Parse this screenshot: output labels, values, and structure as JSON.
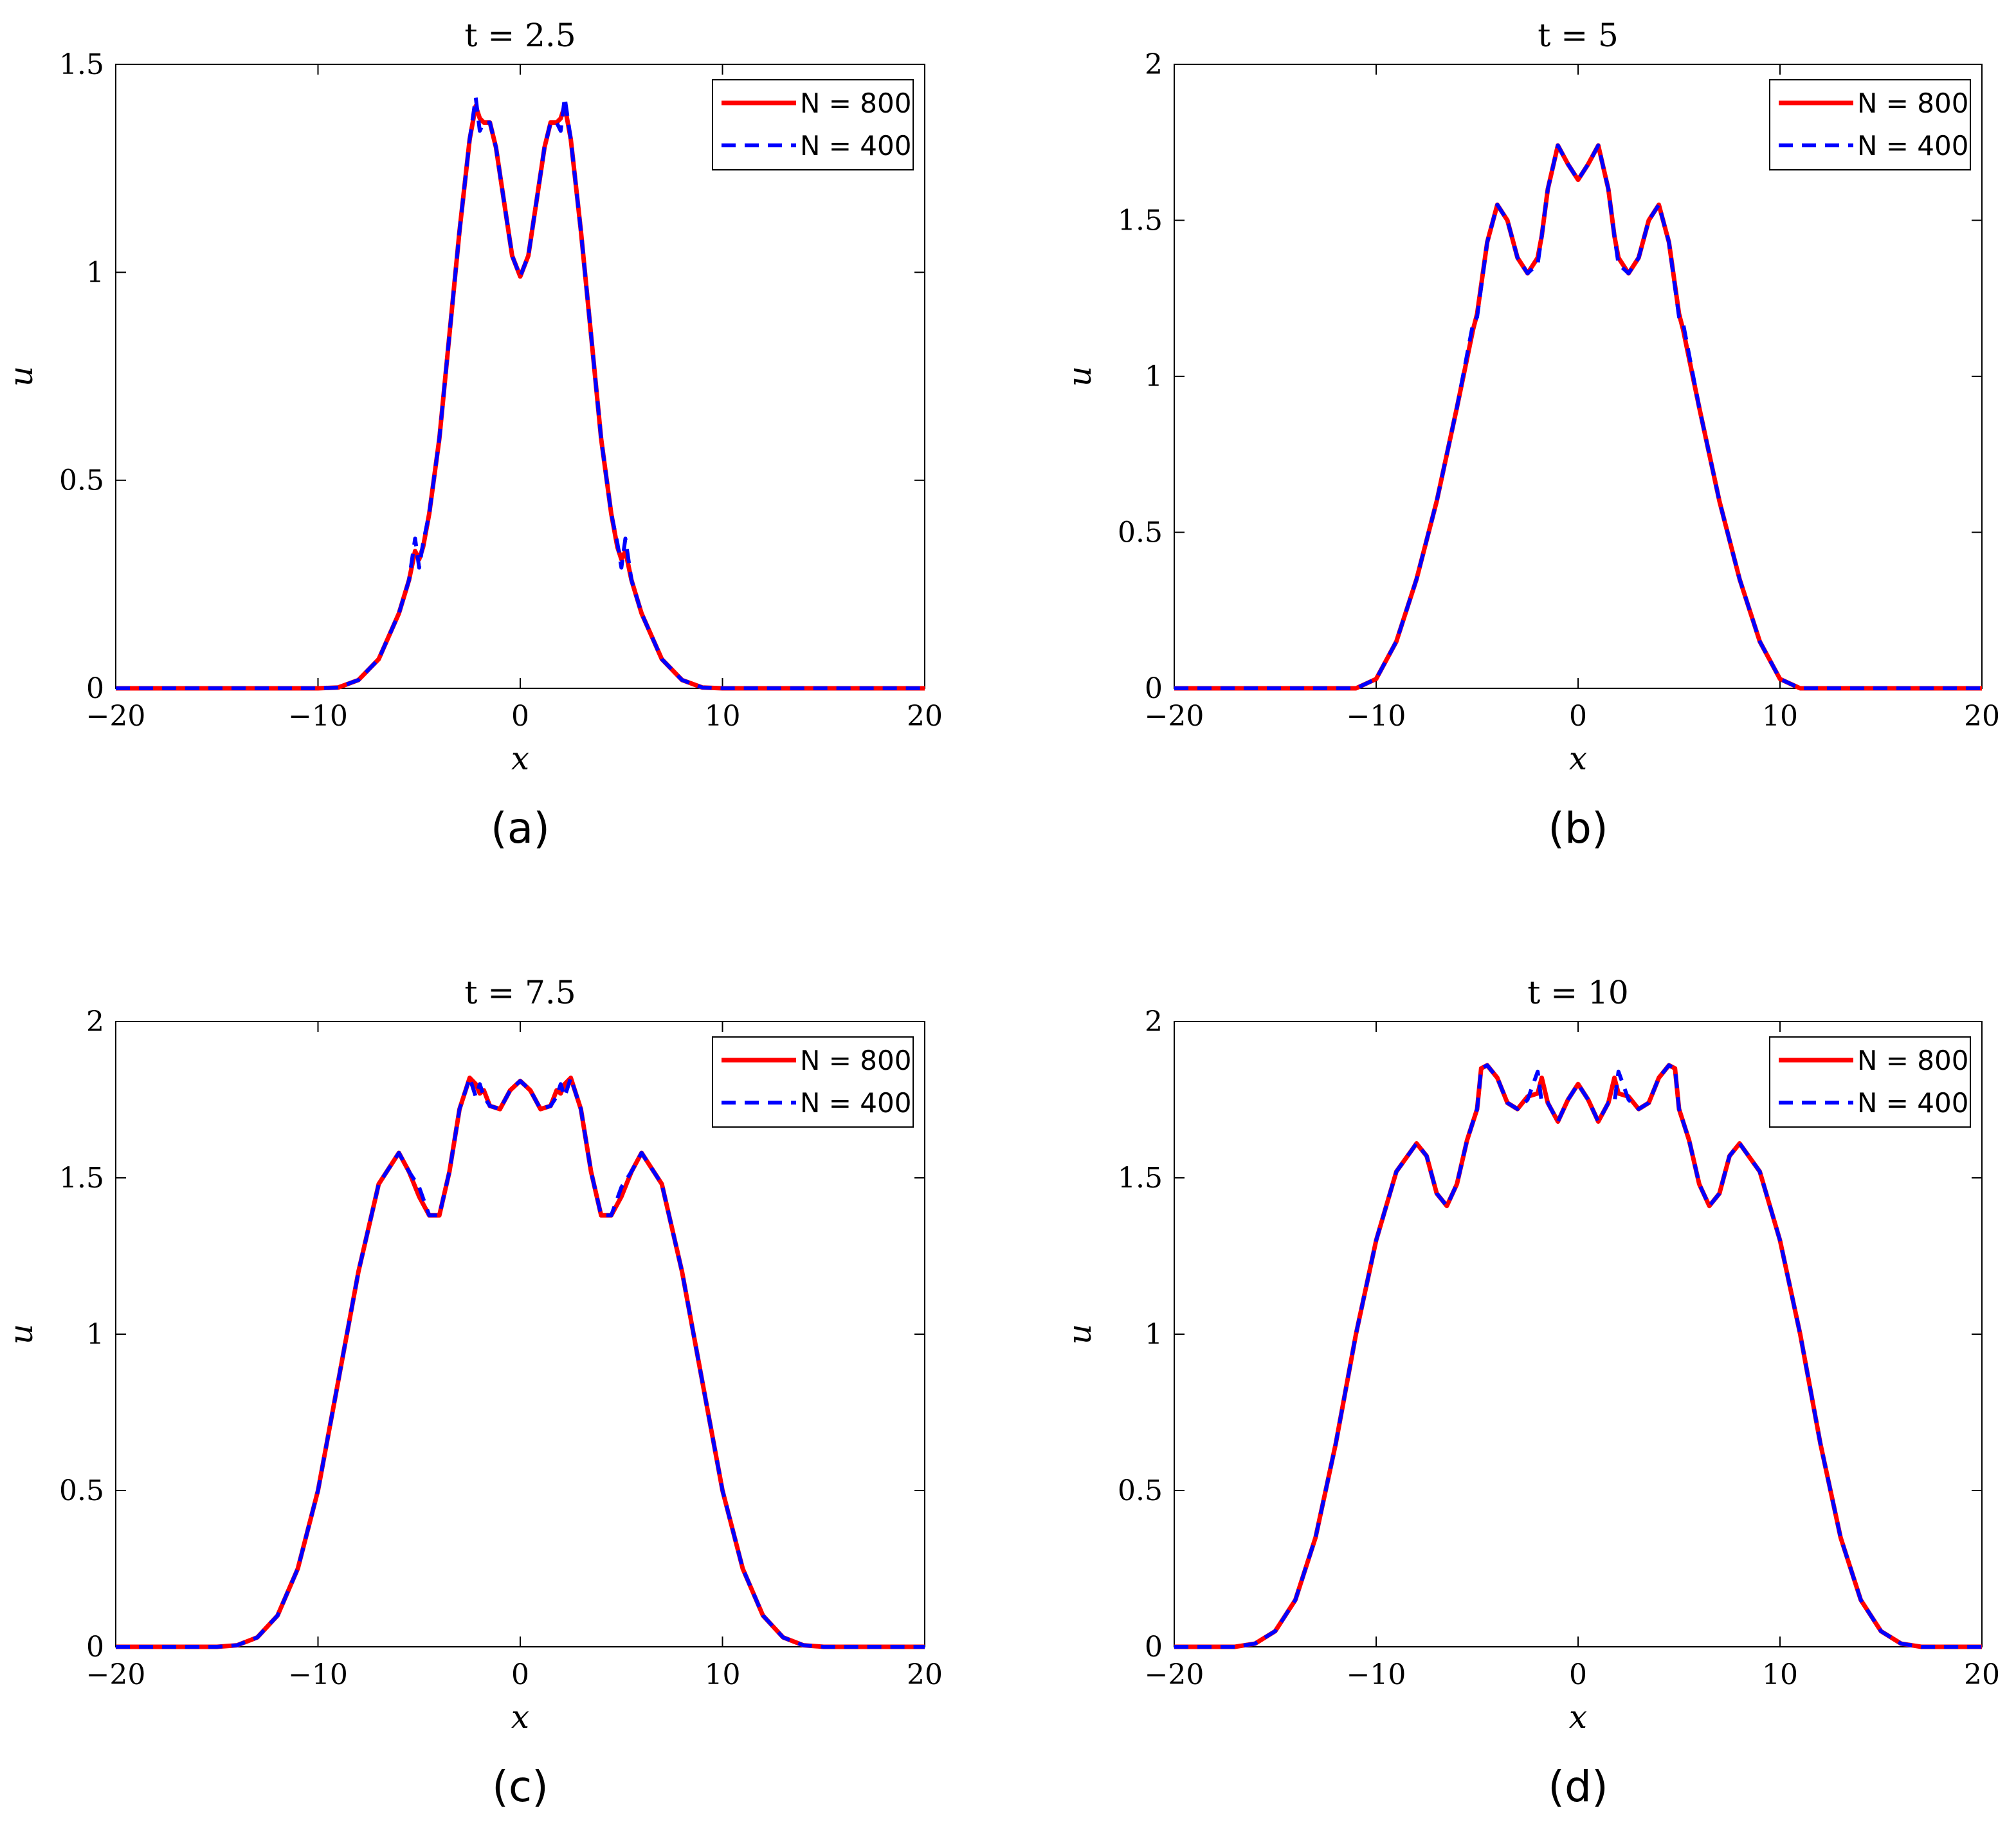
{
  "colors": {
    "series_n800": "#ff0000",
    "series_n400": "#0000ff",
    "axis": "#000000"
  },
  "chart_data": [
    {
      "type": "line",
      "panel": "(a)",
      "panel_letter": "a",
      "title": "t = 2.5",
      "xlabel": "x",
      "ylabel": "u",
      "xlim": [
        -20,
        20
      ],
      "ylim": [
        0,
        1.5
      ],
      "xticks": [
        -20,
        -10,
        0,
        10,
        20
      ],
      "xtick_labels": [
        "−20",
        "−10",
        "0",
        "10",
        "20"
      ],
      "yticks": [
        0,
        0.5,
        1,
        1.5
      ],
      "ytick_labels": [
        "0",
        "0.5",
        "1",
        "1.5"
      ],
      "legend": {
        "location": "top-right",
        "entries": [
          "N = 800",
          "N = 400"
        ]
      },
      "series": [
        {
          "name": "N = 800",
          "style": "solid",
          "x": [
            -20,
            -10,
            -9,
            -8,
            -7,
            -6,
            -5.5,
            -5.2,
            -5.0,
            -4.8,
            -4.5,
            -4,
            -3.5,
            -3,
            -2.5,
            -2.2,
            -2.0,
            -1.8,
            -1.5,
            -1.2,
            -0.8,
            -0.4,
            0,
            0.4,
            0.8,
            1.2,
            1.5,
            1.8,
            2.0,
            2.2,
            2.5,
            3,
            3.5,
            4,
            4.5,
            4.8,
            5.0,
            5.2,
            5.5,
            6,
            7,
            8,
            9,
            10,
            20
          ],
          "y": [
            0,
            0,
            0.002,
            0.02,
            0.07,
            0.18,
            0.26,
            0.33,
            0.31,
            0.34,
            0.42,
            0.6,
            0.85,
            1.1,
            1.32,
            1.4,
            1.37,
            1.36,
            1.36,
            1.3,
            1.17,
            1.04,
            0.99,
            1.04,
            1.17,
            1.3,
            1.36,
            1.36,
            1.37,
            1.4,
            1.32,
            1.1,
            0.85,
            0.6,
            0.42,
            0.34,
            0.31,
            0.33,
            0.26,
            0.18,
            0.07,
            0.02,
            0.002,
            0,
            0
          ]
        },
        {
          "name": "N = 400",
          "style": "dashed",
          "x": [
            -20,
            -10,
            -9,
            -8,
            -7,
            -6,
            -5.5,
            -5.2,
            -5.0,
            -4.8,
            -4.5,
            -4,
            -3.5,
            -3,
            -2.5,
            -2.2,
            -2.0,
            -1.8,
            -1.5,
            -1.2,
            -0.8,
            -0.4,
            0,
            0.4,
            0.8,
            1.2,
            1.5,
            1.8,
            2.0,
            2.2,
            2.5,
            3,
            3.5,
            4,
            4.5,
            4.8,
            5.0,
            5.2,
            5.5,
            6,
            7,
            8,
            9,
            10,
            20
          ],
          "y": [
            0,
            0,
            0.002,
            0.02,
            0.07,
            0.18,
            0.26,
            0.36,
            0.29,
            0.35,
            0.42,
            0.6,
            0.85,
            1.1,
            1.32,
            1.42,
            1.34,
            1.36,
            1.36,
            1.3,
            1.17,
            1.04,
            0.99,
            1.04,
            1.17,
            1.3,
            1.36,
            1.36,
            1.34,
            1.42,
            1.32,
            1.1,
            0.85,
            0.6,
            0.42,
            0.35,
            0.29,
            0.36,
            0.26,
            0.18,
            0.07,
            0.02,
            0.002,
            0,
            0
          ]
        }
      ]
    },
    {
      "type": "line",
      "panel": "(b)",
      "panel_letter": "b",
      "title": "t = 5",
      "xlabel": "x",
      "ylabel": "u",
      "xlim": [
        -20,
        20
      ],
      "ylim": [
        0,
        2
      ],
      "xticks": [
        -20,
        -10,
        0,
        10,
        20
      ],
      "xtick_labels": [
        "−20",
        "−10",
        "0",
        "10",
        "20"
      ],
      "yticks": [
        0,
        0.5,
        1,
        1.5,
        2
      ],
      "ytick_labels": [
        "0",
        "0.5",
        "1",
        "1.5",
        "2"
      ],
      "legend": {
        "location": "top-right",
        "entries": [
          "N = 800",
          "N = 400"
        ]
      },
      "series": [
        {
          "name": "N = 800",
          "style": "solid",
          "x": [
            -20,
            -11,
            -10,
            -9,
            -8,
            -7,
            -6,
            -5.2,
            -5.0,
            -4.5,
            -4,
            -3.5,
            -3,
            -2.5,
            -2.0,
            -1.8,
            -1.5,
            -1,
            -0.5,
            0,
            0.5,
            1,
            1.5,
            1.8,
            2.0,
            2.5,
            3,
            3.5,
            4,
            4.5,
            5.0,
            5.2,
            6,
            7,
            8,
            9,
            10,
            11,
            20
          ],
          "y": [
            0,
            0,
            0.03,
            0.15,
            0.35,
            0.6,
            0.9,
            1.15,
            1.2,
            1.43,
            1.55,
            1.5,
            1.38,
            1.33,
            1.38,
            1.45,
            1.6,
            1.74,
            1.68,
            1.63,
            1.68,
            1.74,
            1.6,
            1.45,
            1.38,
            1.33,
            1.38,
            1.5,
            1.55,
            1.43,
            1.2,
            1.15,
            0.9,
            0.6,
            0.35,
            0.15,
            0.03,
            0,
            0
          ]
        },
        {
          "name": "N = 400",
          "style": "dashed",
          "x": [
            -20,
            -11,
            -10,
            -9,
            -8,
            -7,
            -6,
            -5.2,
            -5.0,
            -4.5,
            -4,
            -3.5,
            -3,
            -2.5,
            -2.0,
            -1.8,
            -1.5,
            -1,
            -0.5,
            0,
            0.5,
            1,
            1.5,
            1.8,
            2.0,
            2.5,
            3,
            3.5,
            4,
            4.5,
            5.0,
            5.2,
            6,
            7,
            8,
            9,
            10,
            11,
            20
          ],
          "y": [
            0,
            0,
            0.03,
            0.15,
            0.35,
            0.6,
            0.9,
            1.17,
            1.19,
            1.43,
            1.55,
            1.5,
            1.38,
            1.33,
            1.36,
            1.45,
            1.6,
            1.74,
            1.68,
            1.63,
            1.68,
            1.74,
            1.6,
            1.45,
            1.36,
            1.33,
            1.38,
            1.5,
            1.55,
            1.43,
            1.19,
            1.17,
            0.9,
            0.6,
            0.35,
            0.15,
            0.03,
            0,
            0
          ]
        }
      ]
    },
    {
      "type": "line",
      "panel": "(c)",
      "panel_letter": "c",
      "title": "t = 7.5",
      "xlabel": "x",
      "ylabel": "u",
      "xlim": [
        -20,
        20
      ],
      "ylim": [
        0,
        2
      ],
      "xticks": [
        -20,
        -10,
        0,
        10,
        20
      ],
      "xtick_labels": [
        "−20",
        "−10",
        "0",
        "10",
        "20"
      ],
      "yticks": [
        0,
        0.5,
        1,
        1.5,
        2
      ],
      "ytick_labels": [
        "0",
        "0.5",
        "1",
        "1.5",
        "2"
      ],
      "legend": {
        "location": "top-right",
        "entries": [
          "N = 800",
          "N = 400"
        ]
      },
      "series": [
        {
          "name": "N = 800",
          "style": "solid",
          "x": [
            -20,
            -15,
            -14,
            -13,
            -12,
            -11,
            -10,
            -9,
            -8,
            -7,
            -6,
            -5.5,
            -5,
            -4.5,
            -4,
            -3.5,
            -3,
            -2.5,
            -2.2,
            -2.0,
            -1.8,
            -1.5,
            -1,
            -0.5,
            0,
            0.5,
            1,
            1.5,
            1.8,
            2.0,
            2.2,
            2.5,
            3,
            3.5,
            4,
            4.5,
            5,
            5.5,
            6,
            7,
            8,
            9,
            10,
            11,
            12,
            13,
            14,
            15,
            20
          ],
          "y": [
            0,
            0,
            0.005,
            0.03,
            0.1,
            0.25,
            0.5,
            0.85,
            1.2,
            1.48,
            1.58,
            1.52,
            1.44,
            1.38,
            1.38,
            1.52,
            1.72,
            1.82,
            1.8,
            1.77,
            1.78,
            1.73,
            1.72,
            1.78,
            1.81,
            1.78,
            1.72,
            1.73,
            1.78,
            1.77,
            1.8,
            1.82,
            1.72,
            1.52,
            1.38,
            1.38,
            1.44,
            1.52,
            1.58,
            1.48,
            1.2,
            0.85,
            0.5,
            0.25,
            0.1,
            0.03,
            0.005,
            0,
            0
          ]
        },
        {
          "name": "N = 400",
          "style": "dashed",
          "x": [
            -20,
            -15,
            -14,
            -13,
            -12,
            -11,
            -10,
            -9,
            -8,
            -7,
            -6,
            -5.5,
            -5,
            -4.5,
            -4,
            -3.5,
            -3,
            -2.5,
            -2.2,
            -2.0,
            -1.8,
            -1.5,
            -1,
            -0.5,
            0,
            0.5,
            1,
            1.5,
            1.8,
            2.0,
            2.2,
            2.5,
            3,
            3.5,
            4,
            4.5,
            5,
            5.5,
            6,
            7,
            8,
            9,
            10,
            11,
            12,
            13,
            14,
            15,
            20
          ],
          "y": [
            0,
            0,
            0.005,
            0.03,
            0.1,
            0.25,
            0.5,
            0.85,
            1.2,
            1.48,
            1.58,
            1.52,
            1.47,
            1.38,
            1.38,
            1.52,
            1.72,
            1.82,
            1.76,
            1.8,
            1.76,
            1.73,
            1.72,
            1.78,
            1.81,
            1.78,
            1.72,
            1.73,
            1.76,
            1.8,
            1.76,
            1.82,
            1.72,
            1.52,
            1.38,
            1.38,
            1.47,
            1.52,
            1.58,
            1.48,
            1.2,
            0.85,
            0.5,
            0.25,
            0.1,
            0.03,
            0.005,
            0,
            0
          ]
        }
      ]
    },
    {
      "type": "line",
      "panel": "(d)",
      "panel_letter": "d",
      "title": "t = 10",
      "xlabel": "x",
      "ylabel": "u",
      "xlim": [
        -20,
        20
      ],
      "ylim": [
        0,
        2
      ],
      "xticks": [
        -20,
        -10,
        0,
        10,
        20
      ],
      "xtick_labels": [
        "−20",
        "−10",
        "0",
        "10",
        "20"
      ],
      "yticks": [
        0,
        0.5,
        1,
        1.5,
        2
      ],
      "ytick_labels": [
        "0",
        "0.5",
        "1",
        "1.5",
        "2"
      ],
      "legend": {
        "location": "top-right",
        "entries": [
          "N = 800",
          "N = 400"
        ]
      },
      "series": [
        {
          "name": "N = 800",
          "style": "solid",
          "x": [
            -20,
            -17,
            -16,
            -15,
            -14,
            -13,
            -12,
            -11,
            -10,
            -9,
            -8,
            -7.5,
            -7,
            -6.5,
            -6,
            -5.5,
            -5,
            -4.8,
            -4.5,
            -4,
            -3.5,
            -3,
            -2.5,
            -2.0,
            -1.8,
            -1.5,
            -1,
            -0.5,
            0,
            0.5,
            1,
            1.5,
            1.8,
            2.0,
            2.5,
            3,
            3.5,
            4,
            4.5,
            4.8,
            5,
            5.5,
            6,
            6.5,
            7,
            7.5,
            8,
            9,
            10,
            11,
            12,
            13,
            14,
            15,
            16,
            17,
            20
          ],
          "y": [
            0,
            0,
            0.01,
            0.05,
            0.15,
            0.35,
            0.65,
            1.0,
            1.3,
            1.52,
            1.61,
            1.57,
            1.45,
            1.41,
            1.48,
            1.62,
            1.72,
            1.85,
            1.86,
            1.82,
            1.74,
            1.72,
            1.76,
            1.77,
            1.82,
            1.74,
            1.68,
            1.75,
            1.8,
            1.75,
            1.68,
            1.74,
            1.82,
            1.77,
            1.76,
            1.72,
            1.74,
            1.82,
            1.86,
            1.85,
            1.72,
            1.62,
            1.48,
            1.41,
            1.45,
            1.57,
            1.61,
            1.52,
            1.3,
            1.0,
            0.65,
            0.35,
            0.15,
            0.05,
            0.01,
            0,
            0
          ]
        },
        {
          "name": "N = 400",
          "style": "dashed",
          "x": [
            -20,
            -17,
            -16,
            -15,
            -14,
            -13,
            -12,
            -11,
            -10,
            -9,
            -8,
            -7.5,
            -7,
            -6.5,
            -6,
            -5.5,
            -5,
            -4.8,
            -4.5,
            -4,
            -3.5,
            -3,
            -2.5,
            -2.0,
            -1.8,
            -1.5,
            -1,
            -0.5,
            0,
            0.5,
            1,
            1.5,
            1.8,
            2.0,
            2.5,
            3,
            3.5,
            4,
            4.5,
            4.8,
            5,
            5.5,
            6,
            6.5,
            7,
            7.5,
            8,
            9,
            10,
            11,
            12,
            13,
            14,
            15,
            16,
            17,
            20
          ],
          "y": [
            0,
            0,
            0.01,
            0.05,
            0.15,
            0.35,
            0.65,
            1.0,
            1.3,
            1.52,
            1.61,
            1.57,
            1.45,
            1.41,
            1.48,
            1.62,
            1.72,
            1.85,
            1.86,
            1.82,
            1.74,
            1.72,
            1.75,
            1.84,
            1.74,
            1.74,
            1.68,
            1.75,
            1.8,
            1.75,
            1.68,
            1.74,
            1.74,
            1.84,
            1.75,
            1.72,
            1.74,
            1.82,
            1.86,
            1.85,
            1.72,
            1.62,
            1.48,
            1.41,
            1.45,
            1.57,
            1.61,
            1.52,
            1.3,
            1.0,
            0.65,
            0.35,
            0.15,
            0.05,
            0.01,
            0,
            0
          ]
        }
      ]
    }
  ]
}
